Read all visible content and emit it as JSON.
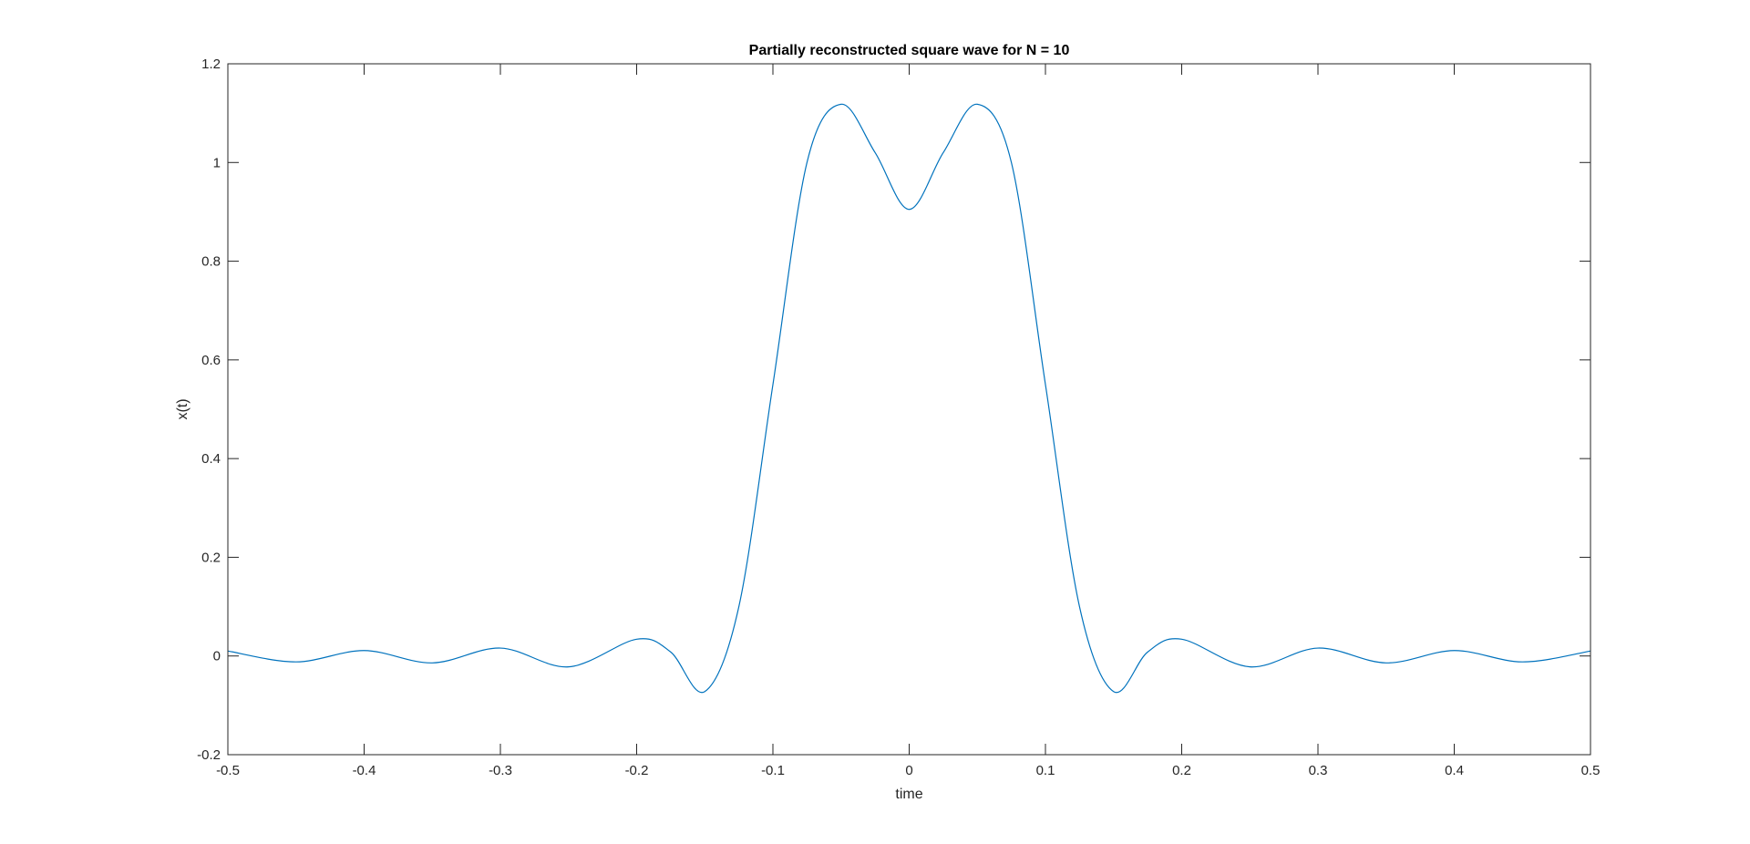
{
  "chart_data": {
    "type": "line",
    "title": "Partially reconstructed square wave for N = 10",
    "xlabel": "time",
    "ylabel": "x(t)",
    "xlim": [
      -0.5,
      0.5
    ],
    "ylim": [
      -0.2,
      1.2
    ],
    "xticks": [
      -0.5,
      -0.4,
      -0.3,
      -0.2,
      -0.1,
      0,
      0.1,
      0.2,
      0.3,
      0.4,
      0.5
    ],
    "xtick_labels": [
      "-0.5",
      "-0.4",
      "-0.3",
      "-0.2",
      "-0.1",
      "0",
      "0.1",
      "0.2",
      "0.3",
      "0.4",
      "0.5"
    ],
    "yticks": [
      -0.2,
      0,
      0.2,
      0.4,
      0.6,
      0.8,
      1,
      1.2
    ],
    "ytick_labels": [
      "-0.2",
      "0",
      "0.2",
      "0.4",
      "0.6",
      "0.8",
      "1",
      "1.2"
    ],
    "grid": false,
    "series": [
      {
        "color": "#0072BD",
        "x": [
          -0.5,
          -0.45,
          -0.4,
          -0.35,
          -0.3,
          -0.25,
          -0.2,
          -0.175,
          -0.15,
          -0.125,
          -0.1,
          -0.075,
          -0.05,
          -0.025,
          0,
          0.025,
          0.05,
          0.075,
          0.1,
          0.125,
          0.15,
          0.175,
          0.2,
          0.25,
          0.3,
          0.35,
          0.4,
          0.45,
          0.5
        ],
        "y": [
          0.01,
          -0.012,
          0.011,
          -0.014,
          0.016,
          -0.022,
          0.034,
          0.008,
          -0.072,
          0.1,
          0.55,
          1.0,
          1.118,
          1.02,
          0.905,
          1.02,
          1.118,
          1.0,
          0.55,
          0.1,
          -0.072,
          0.008,
          0.034,
          -0.022,
          0.016,
          -0.014,
          0.011,
          -0.012,
          0.01
        ]
      }
    ]
  }
}
